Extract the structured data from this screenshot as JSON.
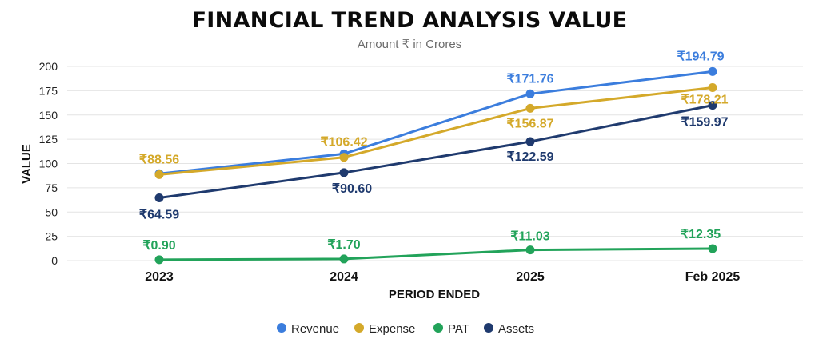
{
  "title": "FINANCIAL TREND ANALYSIS VALUE",
  "subtitle": "Amount ₹ in Crores",
  "chart_data": {
    "type": "line",
    "title": "FINANCIAL TREND ANALYSIS VALUE",
    "subtitle": "Amount ₹ in Crores",
    "xlabel": "PERIOD ENDED",
    "ylabel": "VALUE",
    "categories": [
      "2023",
      "2024",
      "2025",
      "Feb 2025"
    ],
    "ylim": [
      0,
      200
    ],
    "yticks": [
      0,
      25,
      50,
      75,
      100,
      125,
      150,
      175,
      200
    ],
    "grid": true,
    "legend_position": "bottom",
    "series": [
      {
        "name": "Revenue",
        "color": "#3b7ddd",
        "values": [
          89.5,
          110.0,
          171.76,
          194.79
        ],
        "labels": [
          "",
          "",
          "₹171.76",
          "₹194.79"
        ]
      },
      {
        "name": "Expense",
        "color": "#d4a92a",
        "values": [
          88.56,
          106.42,
          156.87,
          178.21
        ],
        "labels": [
          "₹88.56",
          "₹106.42",
          "₹156.87",
          "₹178.21"
        ]
      },
      {
        "name": "PAT",
        "color": "#22a35a",
        "values": [
          0.9,
          1.7,
          11.03,
          12.35
        ],
        "labels": [
          "₹0.90",
          "₹1.70",
          "₹11.03",
          "₹12.35"
        ]
      },
      {
        "name": "Assets",
        "color": "#1f3a6e",
        "values": [
          64.59,
          90.6,
          122.59,
          159.97
        ],
        "labels": [
          "₹64.59",
          "₹90.60",
          "₹122.59",
          "₹159.97"
        ]
      }
    ]
  }
}
